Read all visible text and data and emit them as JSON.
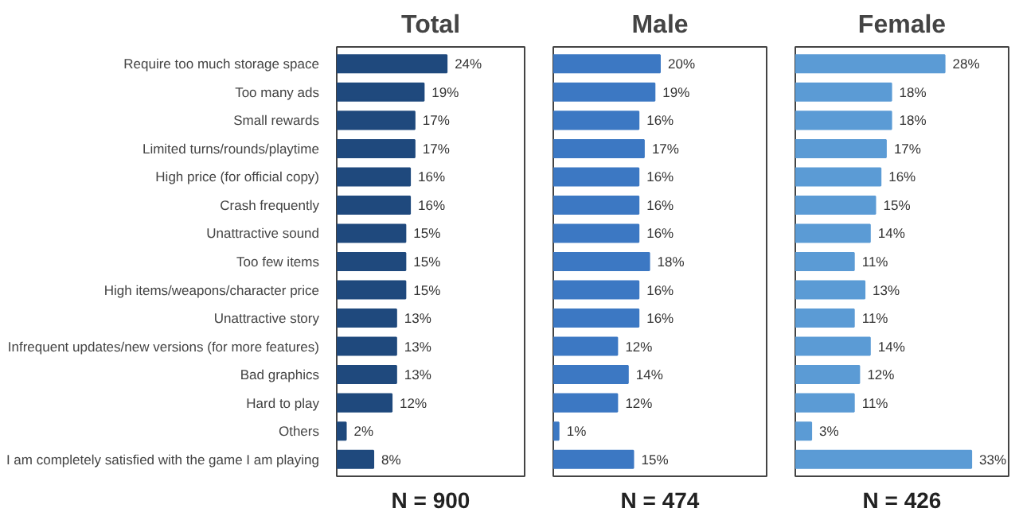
{
  "chart_data": [
    {
      "type": "bar",
      "orientation": "horizontal",
      "title": "Total",
      "categories": [
        "Require too much storage space",
        "Too many ads",
        "Small rewards",
        "Limited turns/rounds/playtime",
        "High price (for official copy)",
        "Crash frequently",
        "Unattractive sound",
        "Too few items",
        "High items/weapons/character price",
        "Unattractive story",
        "Infrequent updates/new versions (for more features)",
        "Bad graphics",
        "Hard to play",
        "Others",
        "I am completely satisfied with the game I am playing"
      ],
      "values": [
        24,
        19,
        17,
        17,
        16,
        16,
        15,
        15,
        15,
        13,
        13,
        13,
        12,
        2,
        8
      ],
      "value_labels": [
        "24%",
        "19%",
        "17%",
        "17%",
        "16%",
        "16%",
        "15%",
        "15%",
        "15%",
        "13%",
        "13%",
        "13%",
        "12%",
        "2%",
        "8%"
      ],
      "color": "#1f497d",
      "xlim": [
        0,
        41
      ],
      "tick_labels": "y",
      "annotations": [
        "N = 900"
      ]
    },
    {
      "type": "bar",
      "orientation": "horizontal",
      "title": "Male",
      "categories": [
        null,
        null,
        null,
        null,
        null,
        null,
        null,
        null,
        null,
        null,
        null,
        null,
        null,
        null,
        null
      ],
      "values": [
        20,
        19,
        16,
        17,
        16,
        16,
        16,
        18,
        16,
        16,
        12,
        14,
        12,
        1,
        15
      ],
      "value_labels": [
        "20%",
        "19%",
        "16%",
        "17%",
        "16%",
        "16%",
        "16%",
        "18%",
        "16%",
        "16%",
        "12%",
        "14%",
        "12%",
        "1%",
        "15%"
      ],
      "color": "#3c78c3",
      "xlim": [
        0,
        40
      ],
      "tick_labels": false,
      "annotations": [
        "N = 474"
      ]
    },
    {
      "type": "bar",
      "orientation": "horizontal",
      "title": "Female",
      "categories": [
        null,
        null,
        null,
        null,
        null,
        null,
        null,
        null,
        null,
        null,
        null,
        null,
        null,
        null,
        null
      ],
      "values": [
        28,
        18,
        18,
        17,
        16,
        15,
        14,
        11,
        13,
        11,
        14,
        12,
        11,
        3,
        33
      ],
      "value_labels": [
        "28%",
        "18%",
        "18%",
        "17%",
        "16%",
        "15%",
        "14%",
        "11%",
        "13%",
        "11%",
        "14%",
        "12%",
        "11%",
        "3%",
        "33%"
      ],
      "color": "#5b9bd5",
      "xlim": [
        0,
        40
      ],
      "tick_labels": false,
      "annotations": [
        "N = 426"
      ]
    }
  ]
}
